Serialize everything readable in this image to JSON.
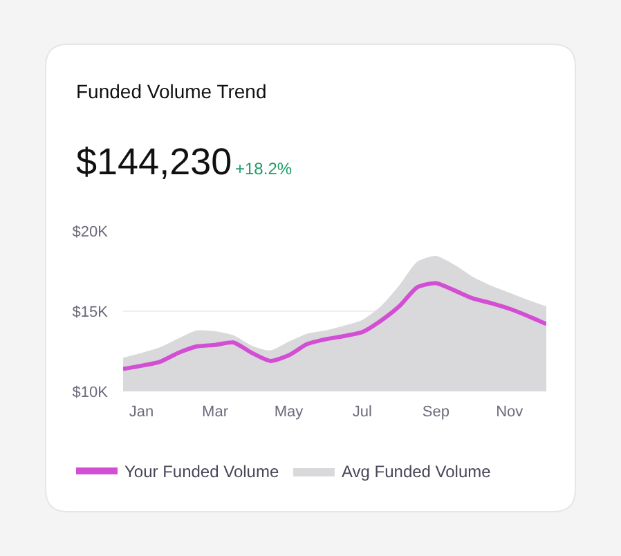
{
  "chart_data": {
    "type": "line",
    "title": "Funded Volume Trend",
    "annotations": [
      "$144,230",
      "+18.2%"
    ],
    "categories": [
      null,
      "Jan",
      null,
      null,
      null,
      "Mar",
      null,
      null,
      null,
      "May",
      null,
      null,
      null,
      "Jul",
      null,
      null,
      null,
      "Sep",
      null,
      null,
      null,
      "Nov",
      null,
      null
    ],
    "series": [
      {
        "name": "Avg Funded Volume",
        "type": "area",
        "color": "#d9d9dc",
        "values": [
          12100,
          12400,
          12750,
          13300,
          13800,
          13750,
          13500,
          12850,
          12550,
          13100,
          13600,
          13800,
          14100,
          14450,
          15300,
          16600,
          18100,
          18450,
          17900,
          17150,
          16600,
          16150,
          15700,
          15300
        ]
      },
      {
        "name": "Your Funded Volume",
        "color": "#d24fd4",
        "values": [
          11400,
          11600,
          11850,
          12400,
          12800,
          12900,
          13050,
          12400,
          11900,
          12250,
          12950,
          13250,
          13450,
          13700,
          14400,
          15300,
          16500,
          16750,
          16300,
          15800,
          15500,
          15150,
          14700,
          14200
        ]
      }
    ],
    "ylim": [
      10000,
      20000
    ],
    "yticks": [
      {
        "value": 10000,
        "label": "$10K"
      },
      {
        "value": 15000,
        "label": "$15K"
      },
      {
        "value": 20000,
        "label": "$20K"
      }
    ],
    "grid": "y",
    "legend": "bottom left",
    "marker": "none",
    "line_style": "solid"
  }
}
